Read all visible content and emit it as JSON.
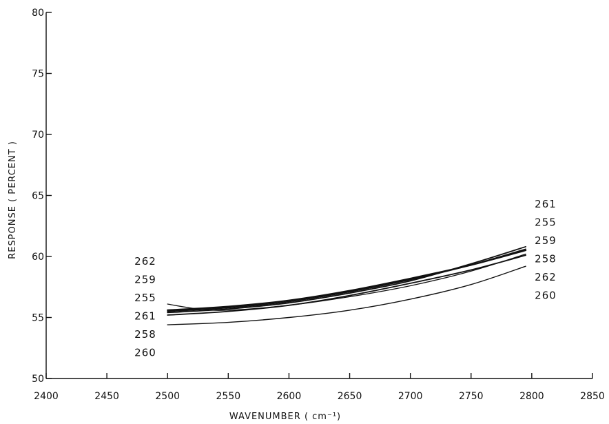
{
  "chart_data": {
    "type": "line",
    "title": "",
    "xlabel": "WAVENUMBER ( cm⁻¹)",
    "ylabel": "RESPONSE ( PERCENT )",
    "xlim": [
      2400,
      2850
    ],
    "ylim": [
      50,
      80
    ],
    "xticks": [
      2400,
      2450,
      2500,
      2550,
      2600,
      2650,
      2700,
      2750,
      2800,
      2850
    ],
    "yticks": [
      50,
      55,
      60,
      65,
      70,
      75,
      80
    ],
    "grid": false,
    "legend": "none",
    "series": [
      {
        "name": "255",
        "x": [
          2500,
          2550,
          2600,
          2650,
          2700,
          2750,
          2795
        ],
        "y": [
          55.5,
          55.8,
          56.3,
          57.1,
          58.1,
          59.3,
          60.6
        ]
      },
      {
        "name": "258",
        "x": [
          2500,
          2550,
          2600,
          2650,
          2700,
          2750,
          2795
        ],
        "y": [
          55.2,
          55.5,
          56.0,
          56.8,
          57.8,
          58.9,
          60.1
        ]
      },
      {
        "name": "259",
        "x": [
          2500,
          2550,
          2600,
          2650,
          2700,
          2750,
          2795
        ],
        "y": [
          55.6,
          55.9,
          56.4,
          57.2,
          58.2,
          59.3,
          60.5
        ]
      },
      {
        "name": "260",
        "x": [
          2500,
          2550,
          2600,
          2650,
          2700,
          2750,
          2795
        ],
        "y": [
          54.4,
          54.6,
          55.0,
          55.6,
          56.5,
          57.7,
          59.2
        ]
      },
      {
        "name": "261",
        "x": [
          2500,
          2550,
          2600,
          2650,
          2700,
          2750,
          2795
        ],
        "y": [
          55.4,
          55.7,
          56.2,
          57.0,
          58.0,
          59.4,
          60.8
        ]
      },
      {
        "name": "262",
        "x": [
          2500,
          2525,
          2550,
          2600,
          2650,
          2700,
          2750,
          2795
        ],
        "y": [
          56.1,
          55.7,
          55.6,
          56.0,
          56.7,
          57.6,
          58.8,
          60.2
        ]
      }
    ],
    "left_labels": [
      "262",
      "259",
      "255",
      "261",
      "258",
      "260"
    ],
    "right_labels": [
      "261",
      "255",
      "259",
      "258",
      "262",
      "260"
    ]
  }
}
